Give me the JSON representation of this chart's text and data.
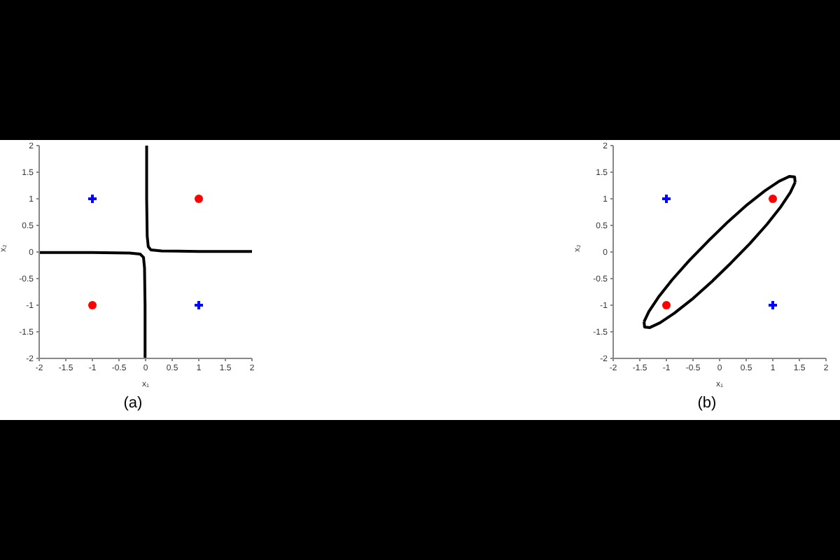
{
  "chart_data": [
    {
      "type": "scatter",
      "title": "(a)",
      "xlabel": "x₁",
      "ylabel": "x₂",
      "xlim": [
        -2,
        2
      ],
      "ylim": [
        -2,
        2
      ],
      "xticks": [
        -2,
        -1.5,
        -1,
        -0.5,
        0,
        0.5,
        1,
        1.5,
        2
      ],
      "yticks": [
        -2,
        -1.5,
        -1,
        -0.5,
        0,
        0.5,
        1,
        1.5,
        2
      ],
      "grid": false,
      "legend": false,
      "series": [
        {
          "type": "scatter",
          "marker": "circle",
          "color": "#ff0000",
          "x": [
            1,
            -1
          ],
          "values": [
            1,
            -1
          ]
        },
        {
          "type": "scatter",
          "marker": "cross",
          "color": "#0000ff",
          "x": [
            -1,
            1
          ],
          "values": [
            1,
            -1
          ]
        },
        {
          "type": "line",
          "marker": "none",
          "line_style": "solid",
          "color": "#000000",
          "x": [
            0.02,
            0.02,
            0.03,
            0.05,
            0.1,
            0.3,
            1,
            2
          ],
          "values": [
            2,
            1,
            0.3,
            0.1,
            0.04,
            0.02,
            0.01,
            0.01
          ]
        },
        {
          "type": "line",
          "marker": "none",
          "line_style": "solid",
          "color": "#000000",
          "x": [
            -2,
            -1,
            -0.3,
            -0.1,
            -0.04,
            -0.02,
            -0.01,
            -0.01
          ],
          "values": [
            -0.01,
            -0.01,
            -0.02,
            -0.04,
            -0.1,
            -0.3,
            -1,
            -2
          ]
        }
      ]
    },
    {
      "type": "scatter",
      "title": "(b)",
      "xlabel": "x₁",
      "ylabel": "x₂",
      "xlim": [
        -2,
        2
      ],
      "ylim": [
        -2,
        2
      ],
      "xticks": [
        -2,
        -1.5,
        -1,
        -0.5,
        0,
        0.5,
        1,
        1.5,
        2
      ],
      "yticks": [
        -2,
        -1.5,
        -1,
        -0.5,
        0,
        0.5,
        1,
        1.5,
        2
      ],
      "grid": false,
      "legend": false,
      "series": [
        {
          "type": "scatter",
          "marker": "circle",
          "color": "#ff0000",
          "x": [
            1,
            -1
          ],
          "values": [
            1,
            -1
          ]
        },
        {
          "type": "scatter",
          "marker": "cross",
          "color": "#0000ff",
          "x": [
            -1,
            1
          ],
          "values": [
            1,
            -1
          ]
        },
        {
          "type": "line",
          "marker": "none",
          "line_style": "solid",
          "color": "#000000",
          "x": [
            -1.42,
            -1.33,
            -1.15,
            -0.89,
            -0.57,
            -0.21,
            0.16,
            0.52,
            0.85,
            1.12,
            1.31,
            1.41,
            1.42
          ],
          "values": [
            -1.31,
            -1.12,
            -0.85,
            -0.52,
            -0.16,
            0.21,
            0.57,
            0.89,
            1.15,
            1.33,
            1.42,
            1.41,
            1.31
          ]
        },
        {
          "type": "line",
          "marker": "none",
          "line_style": "solid",
          "color": "#000000",
          "x": [
            -1.42,
            -1.41,
            -1.31,
            -1.12,
            -0.85,
            -0.52,
            -0.16,
            0.21,
            0.57,
            0.89,
            1.15,
            1.33,
            1.42
          ],
          "values": [
            -1.31,
            -1.41,
            -1.42,
            -1.33,
            -1.15,
            -0.89,
            -0.57,
            -0.21,
            0.16,
            0.52,
            0.85,
            1.12,
            1.31
          ]
        }
      ]
    }
  ]
}
